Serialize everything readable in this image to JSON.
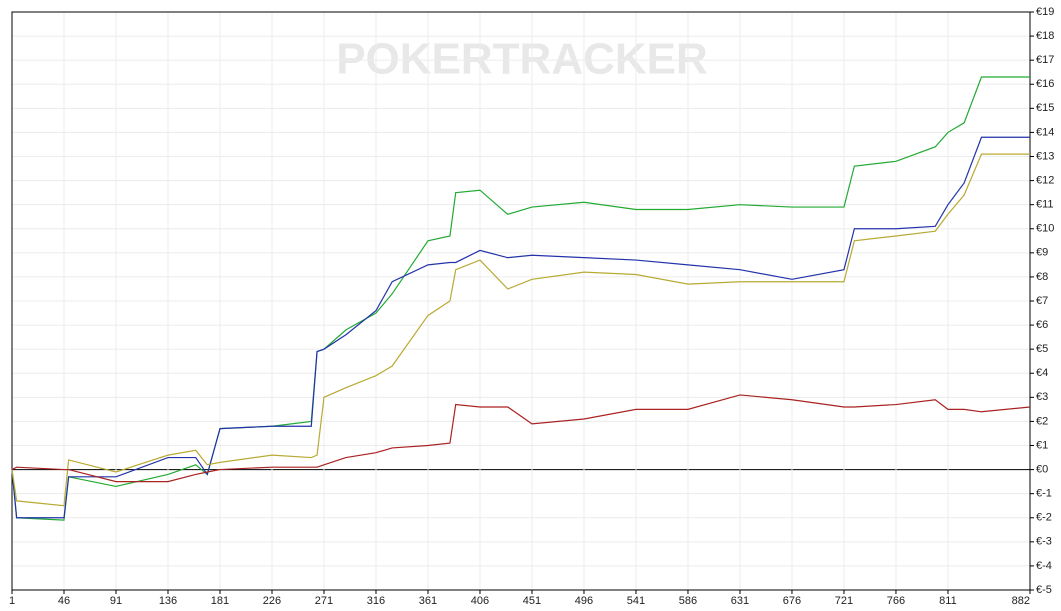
{
  "chart_data": {
    "type": "line",
    "watermark": "POKERTRACKER",
    "x": [
      1,
      5,
      46,
      50,
      91,
      136,
      160,
      170,
      181,
      226,
      260,
      265,
      271,
      290,
      316,
      330,
      361,
      380,
      385,
      406,
      430,
      451,
      496,
      541,
      586,
      631,
      676,
      721,
      730,
      766,
      800,
      811,
      825,
      840,
      882
    ],
    "series": [
      {
        "color": "#22aa33",
        "values": [
          0,
          -2.0,
          -2.1,
          -0.3,
          -0.7,
          -0.2,
          0.2,
          -0.2,
          1.7,
          1.8,
          2.0,
          4.9,
          5.0,
          5.8,
          6.5,
          7.3,
          9.5,
          9.7,
          11.5,
          11.6,
          10.6,
          10.9,
          11.1,
          10.8,
          10.8,
          11.0,
          10.9,
          10.9,
          12.6,
          12.8,
          13.4,
          14.0,
          14.4,
          16.3,
          16.3
        ]
      },
      {
        "color": "#2233aa",
        "values": [
          0,
          -2.0,
          -2.0,
          -0.3,
          -0.3,
          0.5,
          0.5,
          -0.2,
          1.7,
          1.8,
          1.8,
          4.9,
          5.0,
          5.6,
          6.6,
          7.8,
          8.5,
          8.6,
          8.6,
          9.1,
          8.8,
          8.9,
          8.8,
          8.7,
          8.5,
          8.3,
          7.9,
          8.3,
          10.0,
          10.0,
          10.1,
          11.0,
          11.9,
          13.8,
          13.8
        ]
      },
      {
        "color": "#b8aa33",
        "values": [
          0,
          -1.3,
          -1.5,
          0.4,
          -0.1,
          0.6,
          0.8,
          0.2,
          0.3,
          0.6,
          0.5,
          0.6,
          3.0,
          3.4,
          3.9,
          4.3,
          6.4,
          7.0,
          8.3,
          8.7,
          7.5,
          7.9,
          8.2,
          8.1,
          7.7,
          7.8,
          7.8,
          7.8,
          9.5,
          9.7,
          9.9,
          10.6,
          11.4,
          13.1,
          13.1
        ]
      },
      {
        "color": "#aa2222",
        "values": [
          0,
          0.1,
          0.0,
          0.0,
          -0.5,
          -0.5,
          -0.2,
          -0.1,
          0.0,
          0.1,
          0.1,
          0.1,
          0.2,
          0.5,
          0.7,
          0.9,
          1.0,
          1.1,
          2.7,
          2.6,
          2.6,
          1.9,
          2.1,
          2.5,
          2.5,
          3.1,
          2.9,
          2.6,
          2.6,
          2.7,
          2.9,
          2.5,
          2.5,
          2.4,
          2.6
        ]
      }
    ],
    "xlim": [
      1,
      882
    ],
    "xticks": [
      1,
      46,
      91,
      136,
      181,
      226,
      271,
      316,
      361,
      406,
      451,
      496,
      541,
      586,
      631,
      676,
      721,
      766,
      811,
      882
    ],
    "ylim": [
      -5,
      19
    ],
    "yticks": [
      {
        "value": -5,
        "label": "€-5"
      },
      {
        "value": -4,
        "label": "€-4"
      },
      {
        "value": -3,
        "label": "€-3"
      },
      {
        "value": -2,
        "label": "€-2"
      },
      {
        "value": -1,
        "label": "€-1"
      },
      {
        "value": 0,
        "label": "€0"
      },
      {
        "value": 1,
        "label": "€1"
      },
      {
        "value": 2,
        "label": "€2"
      },
      {
        "value": 3,
        "label": "€3"
      },
      {
        "value": 4,
        "label": "€4"
      },
      {
        "value": 5,
        "label": "€5"
      },
      {
        "value": 6,
        "label": "€6"
      },
      {
        "value": 7,
        "label": "€7"
      },
      {
        "value": 8,
        "label": "€8"
      },
      {
        "value": 9,
        "label": "€9"
      },
      {
        "value": 10,
        "label": "€10"
      },
      {
        "value": 11,
        "label": "€11"
      },
      {
        "value": 12,
        "label": "€12"
      },
      {
        "value": 13,
        "label": "€13"
      },
      {
        "value": 14,
        "label": "€14"
      },
      {
        "value": 15,
        "label": "€15"
      },
      {
        "value": 16,
        "label": "€16"
      },
      {
        "value": 17,
        "label": "€17"
      },
      {
        "value": 18,
        "label": "€18"
      },
      {
        "value": 19,
        "label": "€19"
      }
    ],
    "grid": true
  }
}
